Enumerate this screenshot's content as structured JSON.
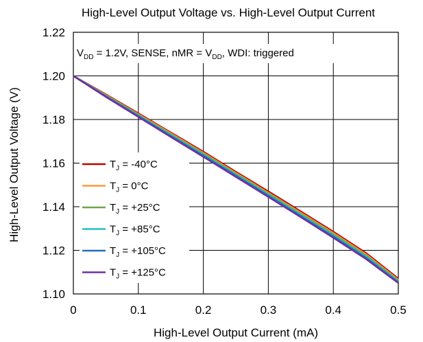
{
  "chart_data": {
    "type": "line",
    "title": "High-Level Output Voltage vs. High-Level Output Current",
    "xlabel": "High-Level Output Current (mA)",
    "ylabel": "High-Level Output Voltage  (V)",
    "xlim": [
      0,
      0.5
    ],
    "ylim": [
      1.1,
      1.22
    ],
    "x_ticks": [
      "0",
      "0.1",
      "0.2",
      "0.3",
      "0.4",
      "0.5"
    ],
    "y_ticks": [
      "1.10",
      "1.12",
      "1.14",
      "1.16",
      "1.18",
      "1.20",
      "1.22"
    ],
    "grid": true,
    "annotation": {
      "v": "V",
      "dd1": "DD",
      "mid": " = 1.2V, SENSE, nMR = V",
      "dd2": "DD",
      "tail": ", WDI: triggered"
    },
    "legend_placement": "left-center",
    "x": [
      0,
      0.05,
      0.1,
      0.15,
      0.2,
      0.25,
      0.3,
      0.35,
      0.4,
      0.45,
      0.5
    ],
    "series": [
      {
        "name": "T",
        "sub": "J",
        "suffix": " = -40°C",
        "color": "#c00000",
        "values": [
          1.2,
          1.1915,
          1.1828,
          1.174,
          1.1652,
          1.156,
          1.147,
          1.1378,
          1.1285,
          1.1188,
          1.107
        ]
      },
      {
        "name": "T",
        "sub": "J",
        "suffix": " = 0°C",
        "color": "#ff9933",
        "values": [
          1.2,
          1.1912,
          1.1824,
          1.1736,
          1.1647,
          1.1555,
          1.1464,
          1.1372,
          1.1279,
          1.1182,
          1.1065
        ]
      },
      {
        "name": "T",
        "sub": "J",
        "suffix": " = +25°C",
        "color": "#6aa84f",
        "values": [
          1.2,
          1.191,
          1.1821,
          1.1732,
          1.1643,
          1.1551,
          1.146,
          1.1367,
          1.1274,
          1.1177,
          1.1061
        ]
      },
      {
        "name": "T",
        "sub": "J",
        "suffix": " = +85°C",
        "color": "#20c0c0",
        "values": [
          1.2,
          1.1908,
          1.1818,
          1.1728,
          1.1638,
          1.1546,
          1.1455,
          1.1362,
          1.1268,
          1.1171,
          1.1057
        ]
      },
      {
        "name": "T",
        "sub": "J",
        "suffix": " = +105°C",
        "color": "#1f6fbf",
        "values": [
          1.2,
          1.1906,
          1.1815,
          1.1724,
          1.1634,
          1.1542,
          1.145,
          1.1357,
          1.1263,
          1.1166,
          1.1053
        ]
      },
      {
        "name": "T",
        "sub": "J",
        "suffix": " = +125°C",
        "color": "#7030a0",
        "values": [
          1.2,
          1.1904,
          1.1812,
          1.172,
          1.1629,
          1.1537,
          1.1445,
          1.1352,
          1.1258,
          1.1161,
          1.105
        ]
      }
    ]
  }
}
